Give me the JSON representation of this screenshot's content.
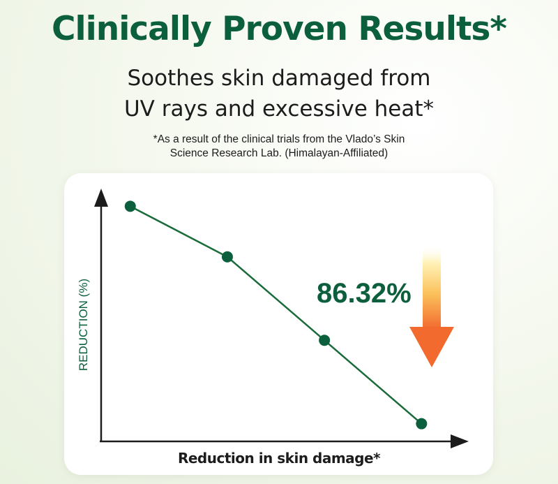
{
  "header": {
    "title": "Clinically Proven Results*",
    "subtitle_lines": [
      "Soothes skin damaged from",
      "UV rays and excessive heat*"
    ],
    "footnote_lines": [
      "*As a result of the clinical trials from the Vlado’s Skin",
      "Science Research Lab. (Himalayan-Affiliated)"
    ]
  },
  "colors": {
    "accent": "#0c5f3c",
    "line": "#1a6b3a",
    "arrow_top": "#fff4c4",
    "arrow_bottom": "#f05a28"
  },
  "chart_data": {
    "type": "line",
    "title": "",
    "xlabel": "Reduction in skin damage*",
    "ylabel": "REDUCTION (%)",
    "x": [
      1,
      2,
      3,
      4
    ],
    "series": [
      {
        "values": [
          93,
          73,
          40,
          7
        ]
      }
    ],
    "xlim": [
      0.7,
      4.4
    ],
    "ylim": [
      0,
      100
    ],
    "grid": false,
    "legend": "none",
    "annotation": "86.32%"
  }
}
